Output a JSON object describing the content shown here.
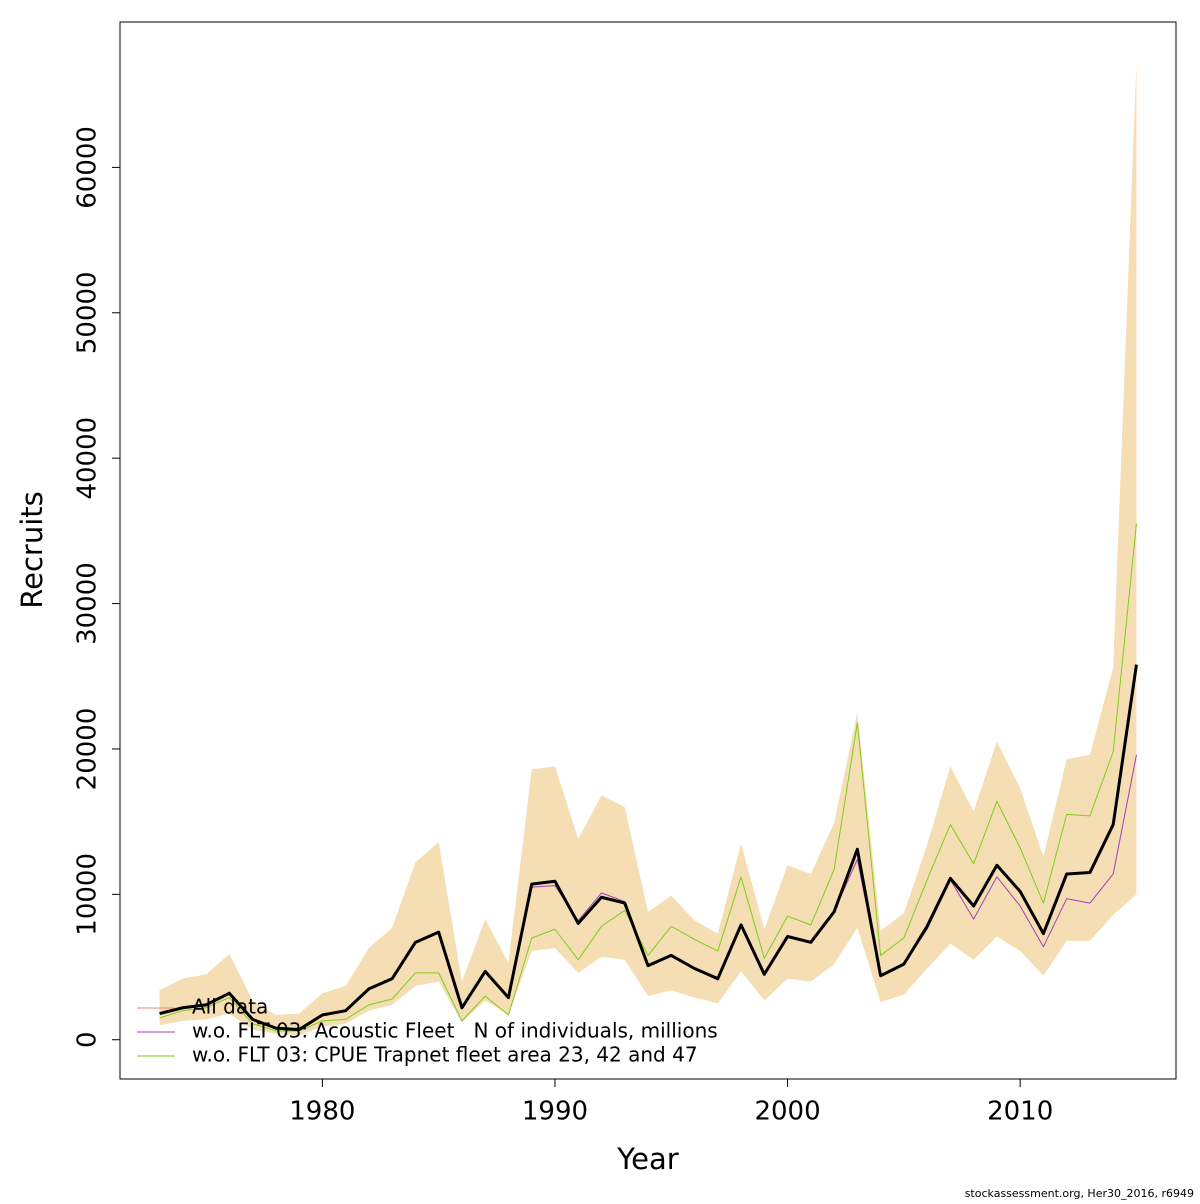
{
  "chart_data": {
    "type": "line",
    "x_label": "Year",
    "y_label": "Recruits",
    "footer": "stockassessment.org, Her30_2016, r6949",
    "x": [
      1973,
      1974,
      1975,
      1976,
      1977,
      1978,
      1979,
      1980,
      1981,
      1982,
      1983,
      1984,
      1985,
      1986,
      1987,
      1988,
      1989,
      1990,
      1991,
      1992,
      1993,
      1994,
      1995,
      1996,
      1997,
      1998,
      1999,
      2000,
      2001,
      2002,
      2003,
      2004,
      2005,
      2006,
      2007,
      2008,
      2009,
      2010,
      2011,
      2012,
      2013,
      2014,
      2015
    ],
    "xlim": [
      1971.3,
      2016.7
    ],
    "xticks": [
      1980,
      1990,
      2000,
      2010
    ],
    "ylim": [
      -2700,
      70000
    ],
    "yticks": [
      0,
      10000,
      20000,
      30000,
      40000,
      50000,
      60000
    ],
    "band": {
      "color": "#f5deb3",
      "upper": [
        3400,
        4200,
        4500,
        5900,
        2700,
        1700,
        1800,
        3200,
        3700,
        6300,
        7700,
        12200,
        13600,
        4000,
        8300,
        5300,
        18600,
        18800,
        13800,
        16800,
        16000,
        8800,
        9900,
        8200,
        7300,
        13500,
        7600,
        12000,
        11400,
        14900,
        22500,
        7500,
        8700,
        13400,
        18800,
        15700,
        20500,
        17300,
        12600,
        19300,
        19600,
        25600,
        67200
      ],
      "lower": [
        1000,
        1300,
        1400,
        1800,
        700,
        400,
        300,
        900,
        1100,
        2000,
        2400,
        3700,
        4000,
        1200,
        2700,
        1700,
        6100,
        6300,
        4600,
        5700,
        5500,
        3000,
        3400,
        2900,
        2500,
        4700,
        2700,
        4200,
        4000,
        5200,
        7700,
        2600,
        3100,
        4900,
        6600,
        5500,
        7100,
        6100,
        4400,
        6800,
        6800,
        8600,
        10000
      ]
    },
    "series": [
      {
        "name": "All data",
        "color": "#000000",
        "legend_color": "#f08080",
        "width": 3,
        "values": [
          1800,
          2200,
          2400,
          3200,
          1400,
          800,
          700,
          1700,
          2000,
          3500,
          4200,
          6700,
          7400,
          2200,
          4700,
          2900,
          10700,
          10900,
          8000,
          9800,
          9400,
          5100,
          5800,
          4900,
          4200,
          7900,
          4500,
          7100,
          6700,
          8800,
          13100,
          4400,
          5200,
          7800,
          11100,
          9200,
          12000,
          10200,
          7300,
          11400,
          11500,
          14800,
          25800
        ]
      },
      {
        "name": "w.o. FLT 03: Acoustic Fleet   N of individuals, millions",
        "color": "#a040b8",
        "legend_color": "#a040b8",
        "width": 1,
        "values": [
          1800,
          2200,
          2400,
          3200,
          1400,
          800,
          700,
          1700,
          2000,
          3500,
          4200,
          6700,
          7400,
          2200,
          4700,
          2900,
          10500,
          10600,
          8200,
          10100,
          9500,
          5100,
          5800,
          4900,
          4100,
          7900,
          4500,
          7100,
          6700,
          8800,
          12400,
          4400,
          5200,
          7600,
          11000,
          8300,
          11200,
          9200,
          6400,
          9700,
          9400,
          11400,
          19600
        ]
      },
      {
        "name": "w.o. FLT 03: CPUE Trapnet fleet area 23, 42 and 47",
        "color": "#7fcd1a",
        "legend_color": "#7fcd1a",
        "width": 1,
        "values": [
          1500,
          2000,
          2200,
          2900,
          1100,
          600,
          600,
          1300,
          1400,
          2400,
          2800,
          4600,
          4600,
          1300,
          3000,
          1700,
          7000,
          7600,
          5500,
          7800,
          8900,
          5800,
          7800,
          6900,
          6100,
          11200,
          5600,
          8500,
          7900,
          11700,
          21800,
          5800,
          7000,
          11000,
          14800,
          12100,
          16400,
          13200,
          9400,
          15500,
          15400,
          19800,
          35500
        ]
      }
    ]
  }
}
